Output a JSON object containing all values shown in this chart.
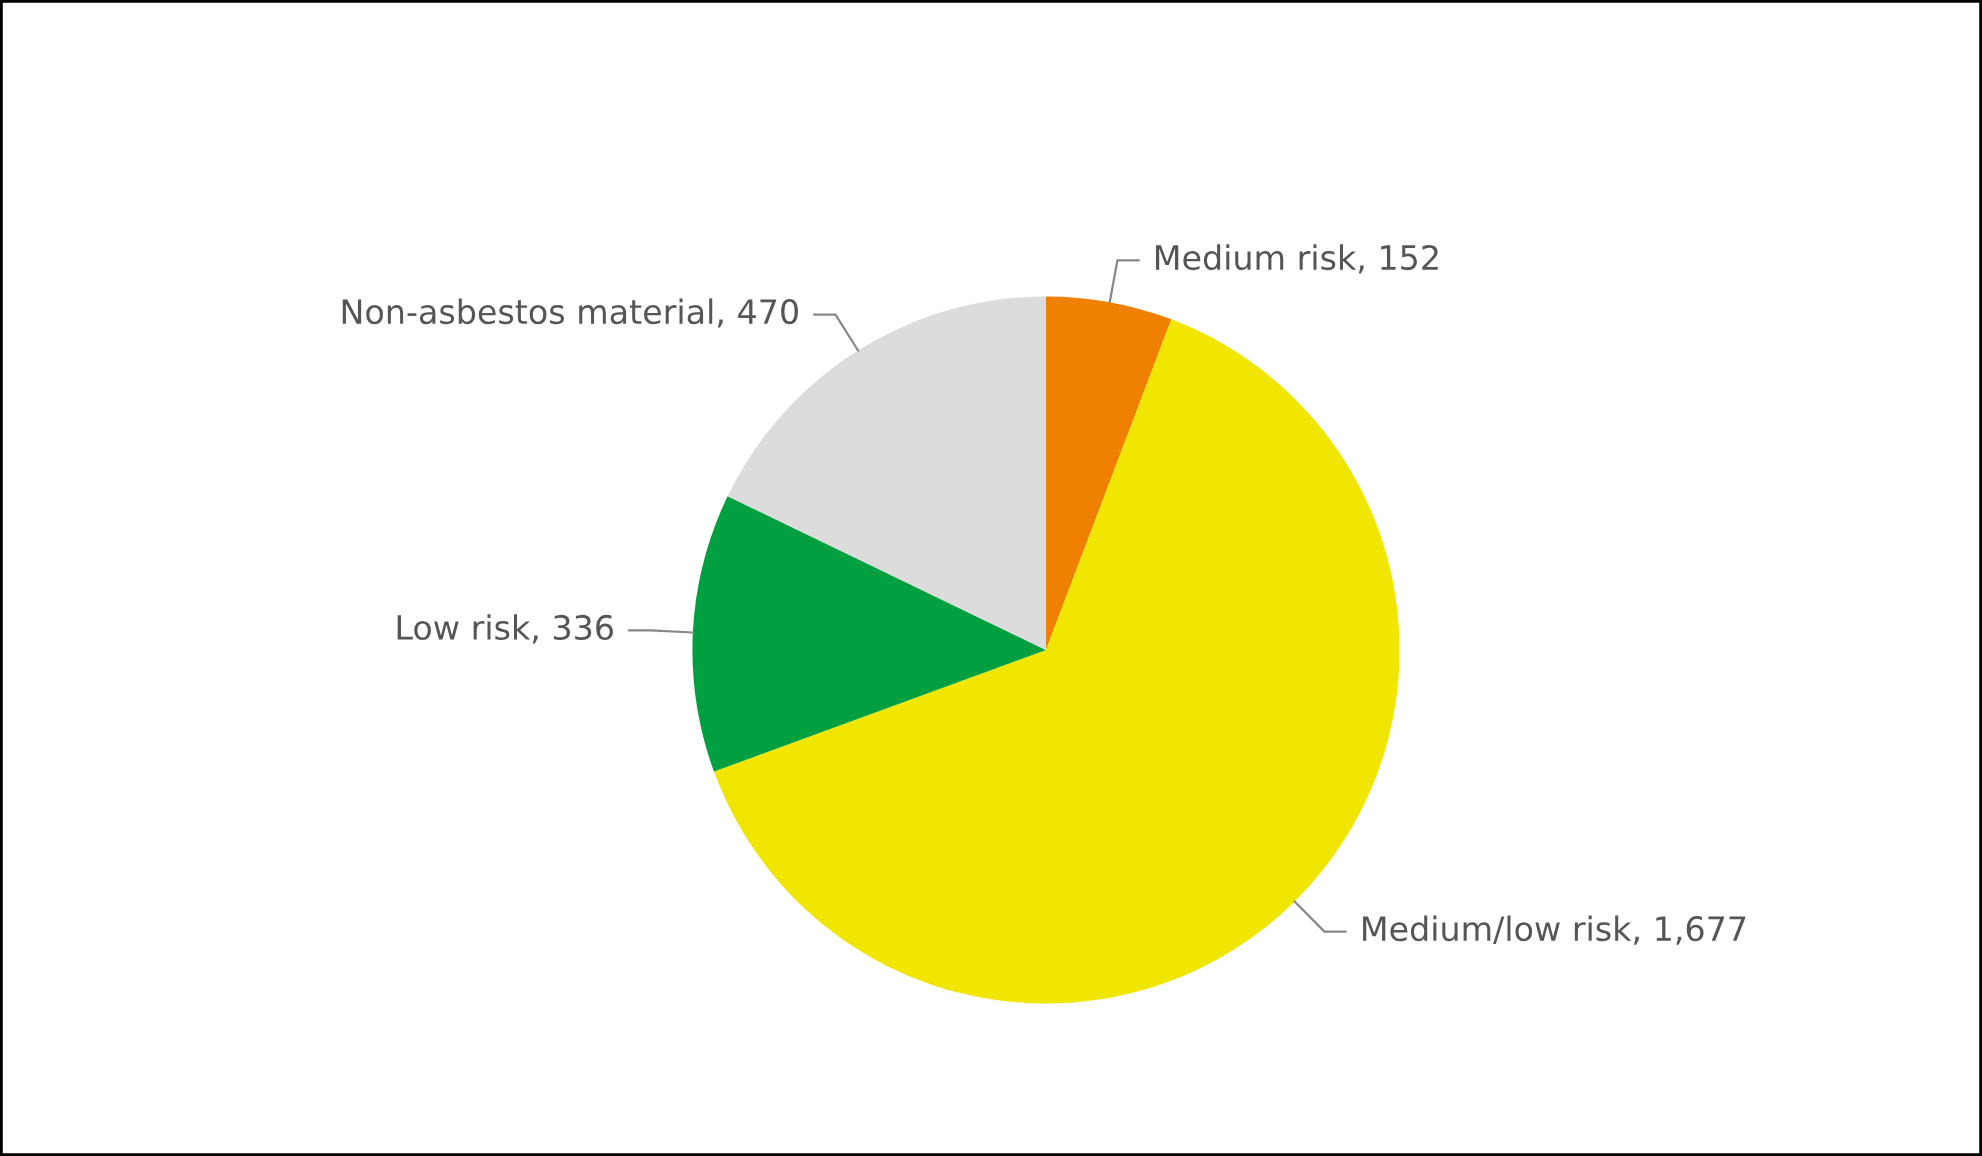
{
  "chart_data": {
    "type": "pie",
    "categories": [
      "Medium risk, 152",
      "Medium/low risk, 1,677",
      "Low risk, 336",
      "Non-asbestos material, 470"
    ],
    "values": [
      152,
      1677,
      336,
      470
    ],
    "colors": [
      "#f08000",
      "#f0e600",
      "#00a040",
      "#dcdcdc"
    ]
  }
}
